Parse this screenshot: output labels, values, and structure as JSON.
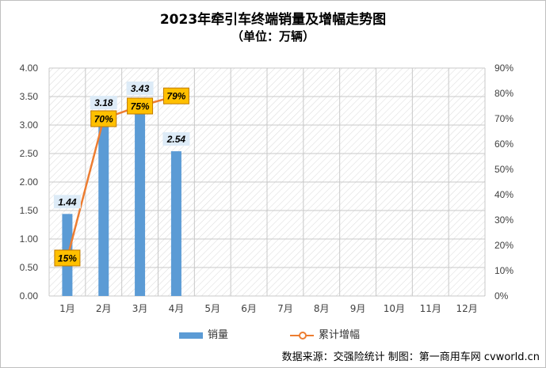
{
  "chart_data": {
    "type": "bar",
    "title": "2023年牵引车终端销量及增幅走势图",
    "subtitle": "（单位：万辆）",
    "categories": [
      "1月",
      "2月",
      "3月",
      "4月",
      "5月",
      "6月",
      "7月",
      "8月",
      "9月",
      "10月",
      "11月",
      "12月"
    ],
    "series": [
      {
        "name": "销量",
        "type": "bar",
        "axis": "left",
        "color": "#5b9bd5",
        "values": [
          1.44,
          3.18,
          3.43,
          2.54,
          null,
          null,
          null,
          null,
          null,
          null,
          null,
          null
        ],
        "labels": [
          "1.44",
          "3.18",
          "3.43",
          "2.54"
        ]
      },
      {
        "name": "累计增幅",
        "type": "line",
        "axis": "right",
        "color": "#ed7d31",
        "values": [
          15,
          70,
          75,
          79,
          null,
          null,
          null,
          null,
          null,
          null,
          null,
          null
        ],
        "labels": [
          "15%",
          "70%",
          "75%",
          "79%"
        ]
      }
    ],
    "y_left": {
      "ylim": [
        0,
        4
      ],
      "ticks": [
        "0.00",
        "0.50",
        "1.00",
        "1.50",
        "2.00",
        "2.50",
        "3.00",
        "3.50",
        "4.00"
      ]
    },
    "y_right": {
      "ylim": [
        0,
        90
      ],
      "ticks": [
        "0%",
        "10%",
        "20%",
        "30%",
        "40%",
        "50%",
        "60%",
        "70%",
        "80%",
        "90%"
      ]
    },
    "legend": {
      "position": "bottom",
      "items": [
        "销量",
        "累计增幅"
      ]
    },
    "grid": true,
    "hatched_plot_area": true
  },
  "source_note": "数据来源：交强险统计   制图：第一商用车网 cvworld.cn"
}
